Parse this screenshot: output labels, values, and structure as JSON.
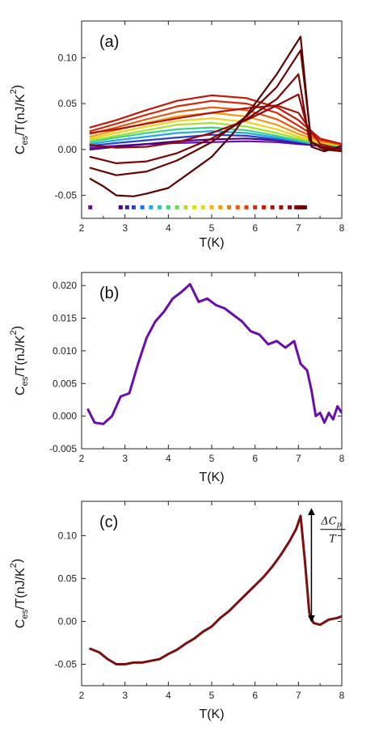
{
  "chart_data": [
    {
      "type": "line",
      "panel_label": "(a)",
      "xlabel": "T(K)",
      "ylabel_main": "C",
      "ylabel_sub": "es",
      "ylabel_rest": "/T(nJ/K",
      "ylabel_sup": "2",
      "ylabel_close": ")",
      "xlim": [
        2,
        8
      ],
      "ylim": [
        -0.075,
        0.14
      ],
      "xticks": [
        "2",
        "3",
        "4",
        "5",
        "6",
        "7",
        "8"
      ],
      "xtick_values": [
        2,
        3,
        4,
        5,
        6,
        7,
        8
      ],
      "yticks": [
        "-0.05",
        "0.00",
        "0.05",
        "0.10"
      ],
      "ytick_values": [
        -0.05,
        0.0,
        0.05,
        0.1
      ],
      "grid": false,
      "marker_row": {
        "y": -0.063,
        "x": [
          2.2,
          2.9,
          3.05,
          3.2,
          3.4,
          3.6,
          3.8,
          4.0,
          4.2,
          4.4,
          4.6,
          4.8,
          5.0,
          5.2,
          5.4,
          5.6,
          5.8,
          6.0,
          6.2,
          6.4,
          6.6,
          6.8,
          6.95,
          7.0,
          7.05,
          7.1,
          7.15
        ],
        "colors": [
          "#6a0dad",
          "#4b0082",
          "#3b1fb0",
          "#2a3fd0",
          "#1e6fe8",
          "#1fa9e0",
          "#22c7c0",
          "#3ad38a",
          "#6edb4a",
          "#a8e030",
          "#d6e020",
          "#f2d21a",
          "#f5b716",
          "#f59a12",
          "#f07a10",
          "#e85a0e",
          "#e0400c",
          "#d42a0a",
          "#c4180a",
          "#b0100a",
          "#a00c0a",
          "#900808",
          "#800808",
          "#7a0606",
          "#720505",
          "#6a0404",
          "#600404"
        ]
      },
      "series": [
        {
          "color": "#6a0dad",
          "x": [
            2.2,
            2.8,
            3.5,
            4.2,
            5.0,
            5.8,
            6.5,
            7.0,
            7.5,
            8.0
          ],
          "y": [
            0.002,
            0.004,
            0.006,
            0.007,
            0.008,
            0.009,
            0.008,
            0.006,
            0.004,
            0.0
          ]
        },
        {
          "color": "#4b0082",
          "x": [
            2.2,
            2.8,
            3.5,
            4.2,
            5.0,
            5.8,
            6.5,
            7.0,
            7.5,
            8.0
          ],
          "y": [
            0.0,
            0.003,
            0.006,
            0.009,
            0.011,
            0.012,
            0.01,
            0.007,
            0.004,
            0.002
          ]
        },
        {
          "color": "#2a3fd0",
          "x": [
            2.2,
            2.8,
            3.5,
            4.2,
            5.0,
            5.8,
            6.5,
            7.0,
            7.5,
            8.0
          ],
          "y": [
            0.004,
            0.007,
            0.01,
            0.013,
            0.016,
            0.015,
            0.011,
            0.008,
            0.005,
            0.003
          ]
        },
        {
          "color": "#1fa9e0",
          "x": [
            2.2,
            2.8,
            3.5,
            4.2,
            5.0,
            5.8,
            6.5,
            7.0,
            7.5,
            8.0
          ],
          "y": [
            0.006,
            0.01,
            0.014,
            0.018,
            0.02,
            0.018,
            0.013,
            0.009,
            0.005,
            0.003
          ]
        },
        {
          "color": "#3ad38a",
          "x": [
            2.2,
            2.8,
            3.5,
            4.2,
            5.0,
            5.8,
            6.5,
            7.0,
            7.5,
            8.0
          ],
          "y": [
            0.008,
            0.013,
            0.018,
            0.022,
            0.024,
            0.021,
            0.015,
            0.01,
            0.006,
            0.004
          ]
        },
        {
          "color": "#a8e030",
          "x": [
            2.2,
            2.8,
            3.5,
            4.2,
            5.0,
            5.8,
            6.5,
            7.0,
            7.5,
            8.0
          ],
          "y": [
            0.01,
            0.015,
            0.021,
            0.027,
            0.029,
            0.025,
            0.018,
            0.012,
            0.007,
            0.004
          ]
        },
        {
          "color": "#f2d21a",
          "x": [
            2.2,
            2.8,
            3.5,
            4.2,
            5.0,
            5.8,
            6.5,
            7.0,
            7.5,
            8.0
          ],
          "y": [
            0.012,
            0.018,
            0.025,
            0.031,
            0.034,
            0.03,
            0.022,
            0.014,
            0.008,
            0.005
          ]
        },
        {
          "color": "#f59a12",
          "x": [
            2.2,
            2.8,
            3.5,
            4.2,
            5.0,
            5.8,
            6.5,
            7.0,
            7.5,
            8.0
          ],
          "y": [
            0.014,
            0.021,
            0.029,
            0.036,
            0.04,
            0.036,
            0.027,
            0.017,
            0.009,
            0.005
          ]
        },
        {
          "color": "#e85a0e",
          "x": [
            2.2,
            2.8,
            3.5,
            4.2,
            5.0,
            5.8,
            6.5,
            7.0,
            7.5,
            8.0
          ],
          "y": [
            0.017,
            0.024,
            0.033,
            0.041,
            0.046,
            0.043,
            0.033,
            0.021,
            0.01,
            0.005
          ]
        },
        {
          "color": "#d42a0a",
          "x": [
            2.2,
            2.8,
            3.5,
            4.2,
            5.0,
            5.8,
            6.5,
            7.0,
            7.5,
            8.0
          ],
          "y": [
            0.02,
            0.028,
            0.038,
            0.047,
            0.053,
            0.05,
            0.04,
            0.026,
            0.011,
            0.006
          ]
        },
        {
          "color": "#c4180a",
          "x": [
            2.2,
            2.8,
            3.5,
            4.2,
            5.0,
            5.8,
            6.5,
            7.0,
            7.5,
            8.0
          ],
          "y": [
            0.024,
            0.032,
            0.043,
            0.053,
            0.059,
            0.056,
            0.046,
            0.032,
            0.012,
            0.006
          ]
        },
        {
          "color": "#b0100a",
          "x": [
            2.2,
            2.8,
            3.5,
            4.2,
            5.0,
            5.8,
            6.5,
            7.0,
            7.5,
            8.0
          ],
          "y": [
            0.018,
            0.022,
            0.028,
            0.034,
            0.04,
            0.045,
            0.048,
            0.04,
            0.006,
            0.0
          ]
        },
        {
          "color": "#900808",
          "x": [
            2.2,
            2.8,
            3.5,
            4.2,
            5.0,
            5.8,
            6.5,
            7.0,
            7.3,
            7.6,
            8.0
          ],
          "y": [
            0.005,
            0.002,
            0.003,
            0.008,
            0.018,
            0.032,
            0.048,
            0.06,
            0.008,
            0.002,
            0.0
          ]
        },
        {
          "color": "#7a0606",
          "x": [
            2.2,
            2.8,
            3.5,
            4.2,
            5.0,
            5.8,
            6.5,
            7.0,
            7.25,
            7.5,
            8.0
          ],
          "y": [
            -0.008,
            -0.015,
            -0.013,
            -0.004,
            0.012,
            0.033,
            0.055,
            0.082,
            0.01,
            0.002,
            0.0
          ]
        },
        {
          "color": "#6a0404",
          "x": [
            2.2,
            2.8,
            3.5,
            4.2,
            5.0,
            5.8,
            6.5,
            7.05,
            7.3,
            7.6,
            8.0
          ],
          "y": [
            -0.02,
            -0.028,
            -0.024,
            -0.012,
            0.008,
            0.036,
            0.068,
            0.108,
            0.008,
            0.0,
            -0.002
          ]
        },
        {
          "color": "#5a0303",
          "x": [
            2.2,
            2.5,
            2.8,
            3.2,
            3.5,
            4.0,
            4.5,
            5.0,
            5.5,
            6.0,
            6.5,
            6.9,
            7.05,
            7.3,
            7.6,
            8.0
          ],
          "y": [
            -0.032,
            -0.04,
            -0.05,
            -0.051,
            -0.048,
            -0.042,
            -0.025,
            -0.008,
            0.018,
            0.05,
            0.082,
            0.112,
            0.123,
            0.003,
            -0.002,
            0.004
          ]
        }
      ]
    },
    {
      "type": "line",
      "panel_label": "(b)",
      "xlabel": "T(K)",
      "ylabel_main": "C",
      "ylabel_sub": "es",
      "ylabel_rest": "/T(nJ/K",
      "ylabel_sup": "2",
      "ylabel_close": ")",
      "xlim": [
        2,
        8
      ],
      "ylim": [
        -0.005,
        0.022
      ],
      "xticks": [
        "2",
        "3",
        "4",
        "5",
        "6",
        "7",
        "8"
      ],
      "xtick_values": [
        2,
        3,
        4,
        5,
        6,
        7,
        8
      ],
      "yticks": [
        "-0.005",
        "0.000",
        "0.005",
        "0.010",
        "0.015",
        "0.020"
      ],
      "ytick_values": [
        -0.005,
        0.0,
        0.005,
        0.01,
        0.015,
        0.02
      ],
      "grid": false,
      "series": [
        {
          "color": "#6a0dad",
          "x": [
            2.15,
            2.3,
            2.5,
            2.7,
            2.9,
            3.1,
            3.3,
            3.5,
            3.7,
            3.9,
            4.1,
            4.3,
            4.5,
            4.7,
            4.9,
            5.1,
            5.3,
            5.5,
            5.7,
            5.9,
            6.1,
            6.3,
            6.5,
            6.7,
            6.9,
            7.05,
            7.2,
            7.3,
            7.4,
            7.5,
            7.6,
            7.7,
            7.8,
            7.9,
            8.0
          ],
          "y": [
            0.001,
            -0.001,
            -0.0012,
            0.0,
            0.003,
            0.0035,
            0.008,
            0.012,
            0.0145,
            0.016,
            0.018,
            0.019,
            0.0202,
            0.0175,
            0.018,
            0.017,
            0.0165,
            0.0155,
            0.0145,
            0.013,
            0.0125,
            0.011,
            0.0115,
            0.0105,
            0.0115,
            0.008,
            0.007,
            0.004,
            0.0,
            0.0005,
            -0.001,
            0.0005,
            -0.0005,
            0.0015,
            0.0005
          ]
        }
      ]
    },
    {
      "type": "line",
      "panel_label": "(c)",
      "xlabel": "T(K)",
      "ylabel_main": "C",
      "ylabel_sub": "es",
      "ylabel_rest": "/T(nJ/K",
      "ylabel_sup": "2",
      "ylabel_close": ")",
      "xlim": [
        2,
        8
      ],
      "ylim": [
        -0.075,
        0.14
      ],
      "xticks": [
        "2",
        "3",
        "4",
        "5",
        "6",
        "7",
        "8"
      ],
      "xtick_values": [
        2,
        3,
        4,
        5,
        6,
        7,
        8
      ],
      "yticks": [
        "-0.05",
        "0.00",
        "0.05",
        "0.10"
      ],
      "ytick_values": [
        -0.05,
        0.0,
        0.05,
        0.1
      ],
      "grid": false,
      "annotation": {
        "numerator": "ΔC",
        "numerator_sub": "p",
        "denominator": "T",
        "x": 7.3,
        "y_top": 0.128,
        "y_bottom": 0.003
      },
      "series": [
        {
          "color": "#7a1010",
          "x": [
            2.2,
            2.4,
            2.6,
            2.8,
            3.0,
            3.2,
            3.4,
            3.6,
            3.8,
            4.0,
            4.2,
            4.4,
            4.6,
            4.8,
            5.0,
            5.2,
            5.4,
            5.6,
            5.8,
            6.0,
            6.2,
            6.4,
            6.6,
            6.8,
            6.95,
            7.05,
            7.15,
            7.25,
            7.35,
            7.5,
            7.7,
            7.9,
            8.0
          ],
          "y": [
            -0.032,
            -0.036,
            -0.044,
            -0.05,
            -0.05,
            -0.048,
            -0.048,
            -0.046,
            -0.044,
            -0.038,
            -0.033,
            -0.026,
            -0.02,
            -0.012,
            -0.006,
            0.004,
            0.012,
            0.022,
            0.032,
            0.042,
            0.052,
            0.064,
            0.078,
            0.094,
            0.108,
            0.123,
            0.07,
            0.01,
            -0.002,
            -0.004,
            0.002,
            0.004,
            0.006
          ]
        }
      ]
    }
  ]
}
